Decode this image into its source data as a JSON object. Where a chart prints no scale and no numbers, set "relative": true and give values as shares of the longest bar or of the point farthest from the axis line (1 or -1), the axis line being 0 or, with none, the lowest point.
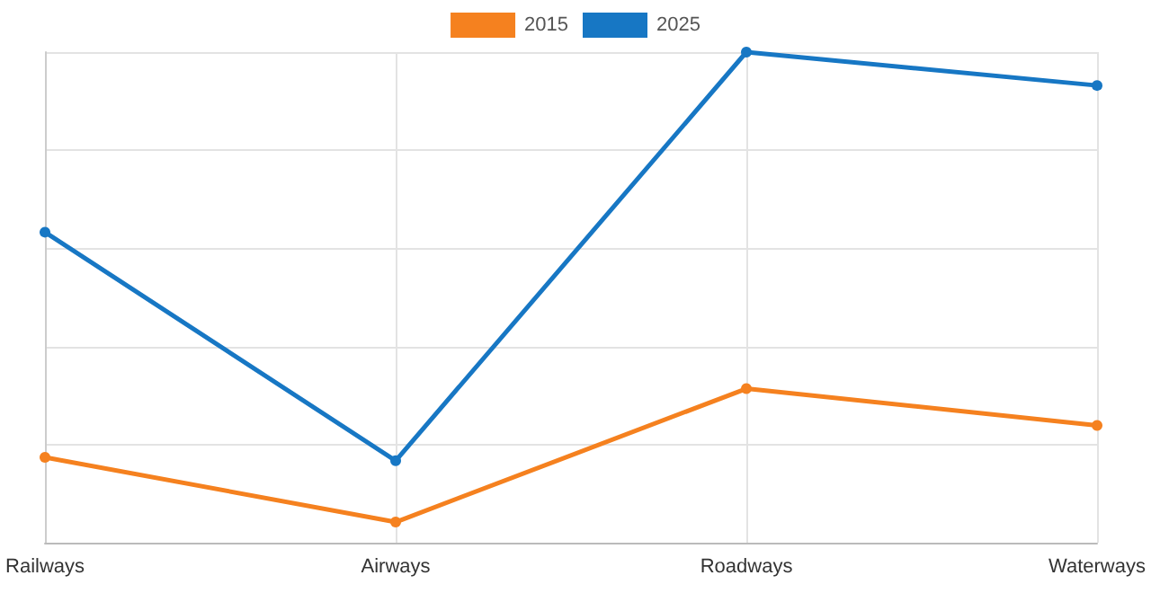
{
  "chart_data": {
    "type": "line",
    "categories": [
      "Railways",
      "Airways",
      "Roadways",
      "Waterways"
    ],
    "relative": true,
    "grid": true,
    "legend": "top",
    "marker": "circle",
    "line_style": "solid",
    "series": [
      {
        "name": "2015",
        "color": "#f5811f",
        "values": [
          0.174,
          0.042,
          0.314,
          0.239
        ]
      },
      {
        "name": "2025",
        "color": "#1777c4",
        "values": [
          0.633,
          0.167,
          1,
          0.932
        ]
      }
    ]
  }
}
